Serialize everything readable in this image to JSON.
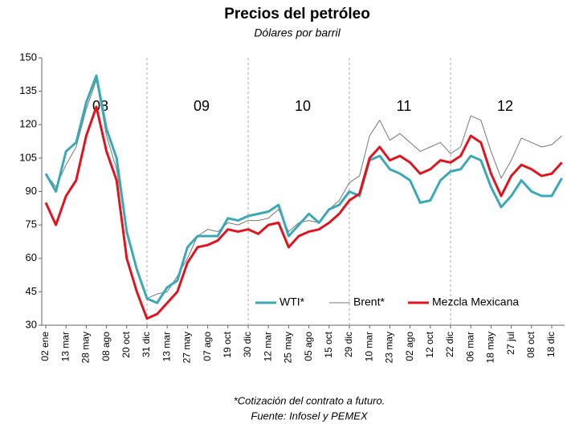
{
  "chart_data": {
    "type": "line",
    "title": "Precios del petróleo",
    "subtitle": "Dólares por barril",
    "annotations": [
      "08",
      "09",
      "10",
      "11",
      "12"
    ],
    "footnotes": [
      "*Cotización del contrato a futuro.",
      "Fuente: Infosel y  PEMEX"
    ],
    "categories": [
      "02 ene",
      null,
      "13 mar",
      null,
      "28 may",
      null,
      "08 ago",
      null,
      "20 oct",
      null,
      "31 dic",
      null,
      "13 mar",
      null,
      "27 may",
      null,
      "07 ago",
      null,
      "19 oct",
      null,
      "30 dic",
      null,
      "12 mar",
      null,
      "25 may",
      null,
      "05 ago",
      null,
      "15 oct",
      null,
      "29 dic",
      null,
      "10 mar",
      null,
      "23 may",
      null,
      "02 ago",
      null,
      "12 oct",
      null,
      "22 dic",
      null,
      "06 mar",
      null,
      "18 may",
      null,
      "27 jul",
      null,
      "08 oct",
      null,
      "18 dic",
      null
    ],
    "series": [
      {
        "name": "WTI*",
        "color": "#3aa9b5",
        "values": [
          98,
          90,
          108,
          112,
          130,
          142,
          118,
          105,
          72,
          55,
          42,
          40,
          47,
          50,
          65,
          70,
          70,
          70,
          78,
          77,
          79,
          80,
          81,
          84,
          70,
          75,
          80,
          76,
          82,
          84,
          90,
          88,
          104,
          106,
          100,
          98,
          95,
          85,
          86,
          95,
          99,
          100,
          106,
          104,
          92,
          83,
          88,
          95,
          90,
          88,
          88,
          96
        ]
      },
      {
        "name": "Brent*",
        "color": "#777777",
        "values": [
          98,
          92,
          102,
          110,
          127,
          140,
          115,
          100,
          72,
          55,
          42,
          44,
          45,
          52,
          60,
          70,
          73,
          72,
          76,
          75,
          77,
          77,
          78,
          82,
          72,
          76,
          77,
          76,
          82,
          86,
          94,
          97,
          115,
          122,
          113,
          116,
          112,
          108,
          110,
          112,
          107,
          110,
          124,
          122,
          108,
          96,
          104,
          114,
          112,
          110,
          111,
          115
        ]
      },
      {
        "name": "Mezcla Mexicana",
        "color": "#e0141e",
        "values": [
          85,
          75,
          88,
          95,
          115,
          128,
          108,
          95,
          60,
          45,
          33,
          35,
          40,
          45,
          58,
          65,
          66,
          68,
          73,
          72,
          73,
          71,
          75,
          76,
          65,
          70,
          72,
          73,
          76,
          80,
          86,
          89,
          105,
          110,
          104,
          106,
          103,
          98,
          100,
          104,
          103,
          106,
          115,
          112,
          98,
          88,
          97,
          102,
          100,
          97,
          98,
          103
        ]
      }
    ],
    "ylim": [
      30,
      150
    ],
    "yticks": [
      30,
      45,
      60,
      75,
      90,
      105,
      120,
      135,
      150
    ]
  }
}
